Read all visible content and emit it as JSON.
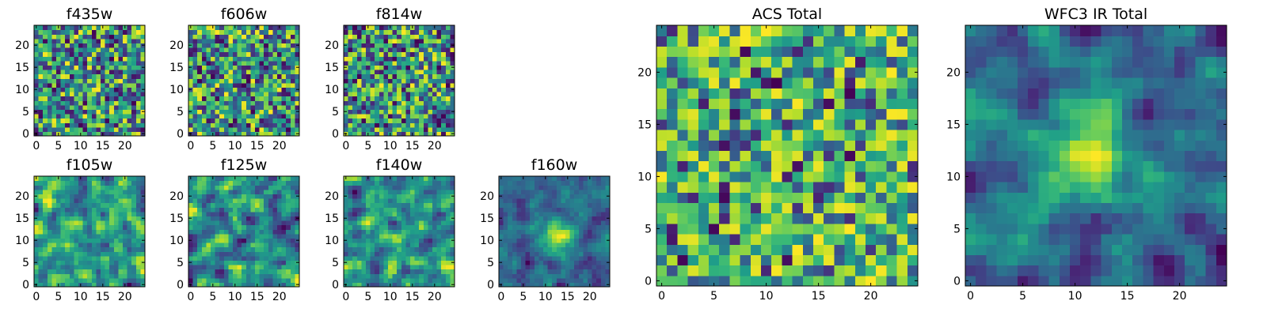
{
  "chart_data": [
    {
      "type": "heatmap",
      "title": "f435w",
      "colormap": "viridis",
      "grid": false,
      "xlim": [
        -0.5,
        24.5
      ],
      "ylim": [
        -0.5,
        24.5
      ],
      "xticks": [
        0,
        5,
        10,
        15,
        20
      ],
      "yticks": [
        0,
        5,
        10,
        15,
        20
      ],
      "grid_size": 25,
      "pattern": "uniform noise"
    },
    {
      "type": "heatmap",
      "title": "f606w",
      "colormap": "viridis",
      "grid": false,
      "xlim": [
        -0.5,
        24.5
      ],
      "ylim": [
        -0.5,
        24.5
      ],
      "xticks": [
        0,
        5,
        10,
        15,
        20
      ],
      "yticks": [
        0,
        5,
        10,
        15,
        20
      ],
      "grid_size": 25,
      "pattern": "uniform noise"
    },
    {
      "type": "heatmap",
      "title": "f814w",
      "colormap": "viridis",
      "grid": false,
      "xlim": [
        -0.5,
        24.5
      ],
      "ylim": [
        -0.5,
        24.5
      ],
      "xticks": [
        0,
        5,
        10,
        15,
        20
      ],
      "yticks": [
        0,
        5,
        10,
        15,
        20
      ],
      "grid_size": 25,
      "pattern": "uniform noise"
    },
    {
      "type": "heatmap",
      "title": "f105w",
      "colormap": "viridis",
      "grid": false,
      "xlim": [
        -0.5,
        24.5
      ],
      "ylim": [
        -0.5,
        24.5
      ],
      "xticks": [
        0,
        5,
        10,
        15,
        20
      ],
      "yticks": [
        0,
        5,
        10,
        15,
        20
      ],
      "grid_size": 25,
      "pattern": "smoothed noise"
    },
    {
      "type": "heatmap",
      "title": "f125w",
      "colormap": "viridis",
      "grid": false,
      "xlim": [
        -0.5,
        24.5
      ],
      "ylim": [
        -0.5,
        24.5
      ],
      "xticks": [
        0,
        5,
        10,
        15,
        20
      ],
      "yticks": [
        0,
        5,
        10,
        15,
        20
      ],
      "grid_size": 25,
      "pattern": "smoothed noise"
    },
    {
      "type": "heatmap",
      "title": "f140w",
      "colormap": "viridis",
      "grid": false,
      "xlim": [
        -0.5,
        24.5
      ],
      "ylim": [
        -0.5,
        24.5
      ],
      "xticks": [
        0,
        5,
        10,
        15,
        20
      ],
      "yticks": [
        0,
        5,
        10,
        15,
        20
      ],
      "grid_size": 25,
      "pattern": "smoothed noise"
    },
    {
      "type": "heatmap",
      "title": "f160w",
      "colormap": "viridis",
      "grid": false,
      "xlim": [
        -0.5,
        24.5
      ],
      "ylim": [
        -0.5,
        24.5
      ],
      "xticks": [
        0,
        5,
        10,
        15,
        20
      ],
      "yticks": [
        0,
        5,
        10,
        15,
        20
      ],
      "grid_size": 25,
      "pattern": "smoothed noise with central source",
      "source_center": [
        12,
        11
      ]
    },
    {
      "type": "heatmap",
      "title": "ACS Total",
      "colormap": "viridis",
      "grid": false,
      "xlim": [
        -0.5,
        24.5
      ],
      "ylim": [
        -0.5,
        24.5
      ],
      "xticks": [
        0,
        5,
        10,
        15,
        20
      ],
      "yticks": [
        0,
        5,
        10,
        15,
        20
      ],
      "grid_size": 25,
      "pattern": "uniform noise, bright"
    },
    {
      "type": "heatmap",
      "title": "WFC3 IR Total",
      "colormap": "viridis",
      "grid": false,
      "xlim": [
        -0.5,
        24.5
      ],
      "ylim": [
        -0.5,
        24.5
      ],
      "xticks": [
        0,
        5,
        10,
        15,
        20
      ],
      "yticks": [
        0,
        5,
        10,
        15,
        20
      ],
      "grid_size": 25,
      "pattern": "smoothed noise with central source",
      "source_center": [
        12,
        12
      ]
    }
  ]
}
